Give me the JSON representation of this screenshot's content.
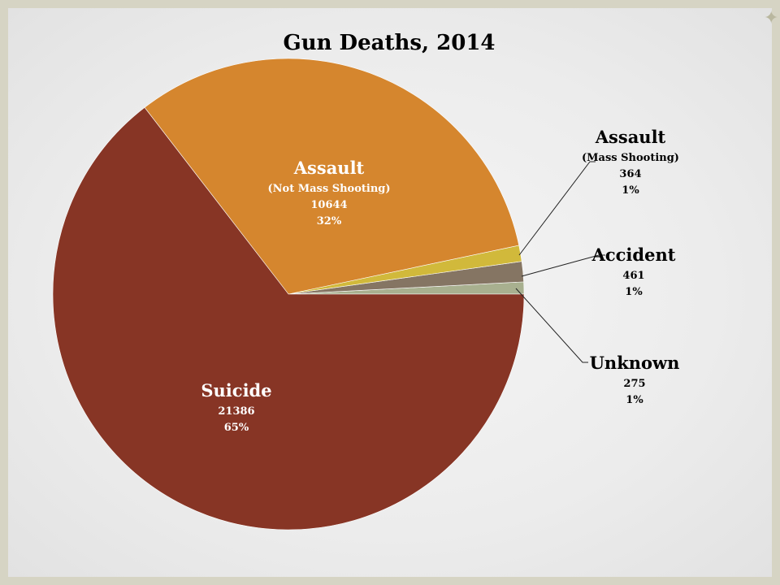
{
  "chart_data": {
    "type": "pie",
    "title": "Gun Deaths, 2014",
    "slices": [
      {
        "label": "Unknown",
        "sublabel": "",
        "value": 275,
        "percent": "1%",
        "color": "#a8b08f",
        "label_position": "outside-right"
      },
      {
        "label": "Accident",
        "sublabel": "",
        "value": 461,
        "percent": "1%",
        "color": "#857563",
        "label_position": "outside-right"
      },
      {
        "label": "Assault",
        "sublabel": "(Mass Shooting)",
        "value": 364,
        "percent": "1%",
        "color": "#d1b93b",
        "label_position": "outside-right"
      },
      {
        "label": "Assault",
        "sublabel": "(Not Mass Shooting)",
        "value": 10644,
        "percent": "32%",
        "color": "#d5862e",
        "label_position": "inside"
      },
      {
        "label": "Suicide",
        "sublabel": "",
        "value": 21386,
        "percent": "65%",
        "color": "#873525",
        "label_position": "inside"
      }
    ],
    "start_angle": "3 o'clock",
    "direction": "counter-clockwise"
  },
  "decor": {
    "corner_icon": "four-point-star-icon",
    "corner_glyph": "✦"
  }
}
